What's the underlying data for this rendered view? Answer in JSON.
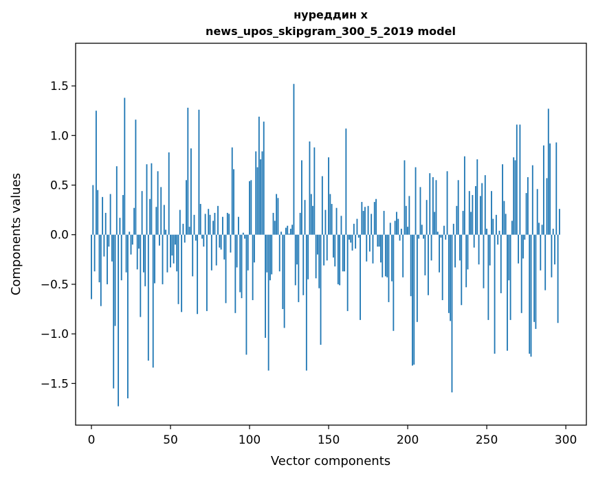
{
  "chart_data": {
    "type": "bar",
    "title_line1": "нуреддин x",
    "title_line2": "news_upos_skipgram_300_5_2019 model",
    "xlabel": "Vector components",
    "ylabel": "Components values",
    "xlim": [
      -10,
      313
    ],
    "ylim": [
      -1.92,
      1.93
    ],
    "xticks": [
      0,
      50,
      100,
      150,
      200,
      250,
      300
    ],
    "yticks": [
      -1.5,
      -1.0,
      -0.5,
      0.0,
      0.5,
      1.0,
      1.5
    ],
    "ytick_labels": [
      "−1.5",
      "−1.0",
      "−0.5",
      "0.0",
      "0.5",
      "1.0",
      "1.5"
    ],
    "xtick_labels": [
      "0",
      "50",
      "100",
      "150",
      "200",
      "250",
      "300"
    ],
    "bar_color": "#1f77b4",
    "grid": false,
    "values": [
      -0.65,
      0.5,
      -0.37,
      1.25,
      0.45,
      -0.48,
      -0.72,
      0.38,
      -0.22,
      0.22,
      -0.5,
      -0.12,
      0.41,
      -0.27,
      -1.55,
      -0.92,
      0.69,
      -1.73,
      0.17,
      -0.46,
      0.4,
      1.38,
      -0.38,
      -1.65,
      0.03,
      -0.2,
      -0.1,
      0.27,
      1.16,
      -0.35,
      -0.14,
      -0.83,
      0.44,
      -0.38,
      -0.52,
      0.71,
      -1.27,
      0.36,
      0.72,
      -1.34,
      -0.49,
      0.28,
      0.64,
      -0.11,
      0.48,
      -0.5,
      0.3,
      0.05,
      -0.38,
      0.83,
      -0.33,
      -0.21,
      -0.29,
      -0.1,
      -0.37,
      -0.7,
      0.25,
      -0.78,
      0.11,
      -0.08,
      0.55,
      1.28,
      0.08,
      0.87,
      -0.42,
      0.2,
      -0.06,
      -0.8,
      1.26,
      0.31,
      -0.04,
      -0.12,
      0.21,
      -0.77,
      0.26,
      0.2,
      -0.36,
      0.14,
      0.22,
      -0.31,
      0.29,
      -0.13,
      -0.15,
      0.18,
      -0.25,
      -0.69,
      0.22,
      0.21,
      -0.18,
      0.88,
      0.66,
      -0.79,
      -0.33,
      0.18,
      -0.58,
      -0.64,
      0.02,
      -0.04,
      -1.21,
      -0.36,
      0.54,
      0.55,
      -0.66,
      -0.28,
      0.84,
      0.68,
      1.19,
      0.76,
      0.84,
      1.14,
      -1.04,
      -0.38,
      -1.37,
      -0.46,
      -0.4,
      0.22,
      0.14,
      0.41,
      0.37,
      -0.37,
      0.03,
      -0.75,
      -0.94,
      0.07,
      0.09,
      0.01,
      0.06,
      0.1,
      1.52,
      -0.51,
      -0.3,
      -0.68,
      0.22,
      0.75,
      -0.61,
      0.35,
      -1.37,
      -0.45,
      0.94,
      0.41,
      0.29,
      0.88,
      -0.44,
      -0.2,
      -0.54,
      -1.11,
      0.59,
      -0.31,
      0.25,
      -0.26,
      0.78,
      0.41,
      0.31,
      -0.23,
      -0.32,
      0.27,
      -0.5,
      -0.51,
      0.19,
      -0.37,
      -0.37,
      1.07,
      -0.77,
      -0.05,
      -0.08,
      -0.16,
      0.11,
      -0.14,
      0.16,
      -0.03,
      -0.86,
      0.33,
      0.24,
      0.28,
      -0.27,
      0.29,
      -0.17,
      0.21,
      -0.29,
      0.33,
      0.36,
      -0.12,
      -0.12,
      -0.28,
      -0.43,
      0.24,
      -0.42,
      -0.43,
      -0.68,
      0.12,
      -0.47,
      -0.97,
      0.14,
      0.23,
      0.16,
      -0.06,
      0.06,
      -0.43,
      0.75,
      0.29,
      0.08,
      0.39,
      -0.62,
      -1.32,
      -1.31,
      0.68,
      -0.88,
      -0.04,
      0.48,
      0.1,
      -0.04,
      -0.41,
      0.35,
      -0.61,
      0.62,
      -0.26,
      0.58,
      0.23,
      0.55,
      0.03,
      -0.38,
      -0.03,
      -0.66,
      0.09,
      -0.05,
      0.64,
      -0.79,
      -0.87,
      -1.59,
      0.11,
      -0.33,
      0.29,
      0.55,
      -0.26,
      -0.71,
      0.24,
      0.79,
      -0.53,
      -0.35,
      0.44,
      0.23,
      0.4,
      -0.13,
      0.49,
      0.76,
      -0.3,
      0.39,
      0.52,
      -0.54,
      0.6,
      0.06,
      -0.86,
      -0.31,
      0.44,
      0.16,
      -1.2,
      0.2,
      -0.1,
      0.04,
      -0.59,
      0.71,
      0.34,
      0.21,
      -1.17,
      -0.46,
      -0.86,
      0.14,
      0.78,
      0.75,
      1.11,
      -0.29,
      1.11,
      -0.79,
      -0.24,
      -0.05,
      0.42,
      0.58,
      -1.2,
      -1.23,
      0.7,
      -0.88,
      -0.95,
      0.46,
      0.12,
      -0.36,
      0.1,
      0.9,
      -0.56,
      0.57,
      1.27,
      0.92,
      -0.43,
      0.06,
      -0.3,
      0.93,
      -0.89,
      0.26
    ]
  }
}
